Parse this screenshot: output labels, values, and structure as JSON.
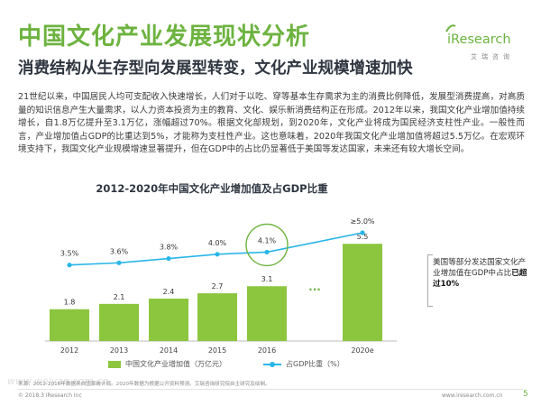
{
  "header": {
    "title": "中国文化产业发展现状分析",
    "subtitle": "消费结构从生存型向发展型转变，文化产业规模增速加快"
  },
  "logo": {
    "brand": "iResearch",
    "tagline": "艾瑞咨询"
  },
  "body_text": "21世纪以来，中国居民人均可支配收入快速增长，人们对于以吃、穿等基本生存需求为主的消费比例降低，发展型消费提高，对高质量的知识信息产生大量需求，以人力资本投资为主的教育、文化、娱乐新消费结构正在形成。2012年以来，我国文化产业增加值持续增长，自1.8万亿提升至3.1万亿，涨幅超过70%。根据文化部规划，到2020年，文化产业将成为国民经济支柱性产业。一般性而言，产业增加值占GDP的比重达到5%，才能称为支柱性产业。这也意味着，2020年我国文化产业增加值将超过5.5万亿。在宏观环境支持下，我国文化产业规模增速显著提升，但在GDP中的占比仍显著低于美国等发达国家，未来还有较大增长空间。",
  "chart_data": {
    "type": "bar",
    "title": "2012-2020年中国文化产业增加值及占GDP比重",
    "categories": [
      "2012",
      "2013",
      "2014",
      "2015",
      "2016",
      "2020e"
    ],
    "series": [
      {
        "name": "中国文化产业增加值（万亿元）",
        "type": "bar",
        "values": [
          1.8,
          2.1,
          2.4,
          2.7,
          3.1,
          5.5
        ],
        "labels": [
          "1.8",
          "2.1",
          "2.4",
          "2.7",
          "3.1",
          "5.5"
        ],
        "color": "#8cc63f"
      },
      {
        "name": "占GDP比重（%）",
        "type": "line",
        "values": [
          3.5,
          3.6,
          3.8,
          4.0,
          4.1,
          5.0
        ],
        "labels": [
          "3.5%",
          "3.6%",
          "3.8%",
          "4.0%",
          "4.1%",
          "≥5.0%"
        ],
        "color": "#29b6e8"
      }
    ],
    "highlight_category": "2016",
    "gap_marker": "...",
    "ylim_bar": [
      0,
      6
    ],
    "ylim_line": [
      0,
      6
    ],
    "xlabel": "",
    "ylabel": ""
  },
  "callout": {
    "text_prefix": "美国等部分发达国家文化产业增加值在GDP中占比",
    "text_bold": "已超过10%"
  },
  "footer": {
    "source": "来源：2012-2016年数据来自国家统计局。2020年数据为根据公开资料预测。艾瑞咨询研究院自主研究及绘制。",
    "copyright": "© 2018.3 iResearch Inc",
    "website": "www.iresearch.com.cn",
    "page": "5",
    "watermark": "www.weiyan.com.cn"
  },
  "colors": {
    "accent": "#6db33f",
    "bar": "#8cc63f",
    "line": "#29b6e8",
    "circle": "#6db33f"
  }
}
